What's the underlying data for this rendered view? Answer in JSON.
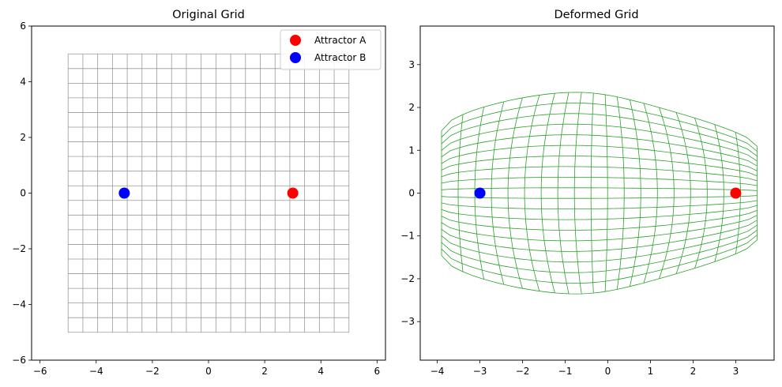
{
  "chart_data": [
    {
      "type": "line",
      "title": "Original Grid",
      "xlim": [
        -6.3,
        6.3
      ],
      "ylim": [
        -6,
        6
      ],
      "xticks": [
        -6,
        -4,
        -2,
        0,
        2,
        4,
        6
      ],
      "yticks": [
        -6,
        -4,
        -2,
        0,
        2,
        4,
        6
      ],
      "tick_labels_x": [
        "−6",
        "−4",
        "−2",
        "0",
        "2",
        "4",
        "6"
      ],
      "tick_labels_y": [
        "−6",
        "−4",
        "−2",
        "0",
        "2",
        "4",
        "6"
      ],
      "grid_x_range": [
        -5,
        5
      ],
      "grid_y_range": [
        -5,
        5
      ],
      "grid_lines": 20,
      "grid_color": "#999999",
      "legend_position": "upper right",
      "series": [
        {
          "name": "Attractor A",
          "x": [
            3
          ],
          "y": [
            0
          ],
          "color": "#ff0000"
        },
        {
          "name": "Attractor B",
          "x": [
            -3
          ],
          "y": [
            0
          ],
          "color": "#0000ff"
        }
      ]
    },
    {
      "type": "line",
      "title": "Deformed Grid",
      "xlim": [
        -4.4,
        3.9
      ],
      "ylim": [
        -3.9,
        3.9
      ],
      "xticks": [
        -4,
        -3,
        -2,
        -1,
        0,
        1,
        2,
        3
      ],
      "yticks": [
        -3,
        -2,
        -1,
        0,
        1,
        2,
        3
      ],
      "tick_labels_x": [
        "−4",
        "−3",
        "−2",
        "−1",
        "0",
        "1",
        "2",
        "3"
      ],
      "tick_labels_y": [
        "−3",
        "−2",
        "−1",
        "0",
        "1",
        "2",
        "3"
      ],
      "deformed_x_extent": [
        -3.9,
        3.5
      ],
      "deformed_y_extent": [
        -2.65,
        2.65
      ],
      "grid_color": "#2ca02c",
      "series": [
        {
          "name": "",
          "x": [
            3
          ],
          "y": [
            0
          ],
          "color": "#ff0000"
        },
        {
          "name": "",
          "x": [
            -3
          ],
          "y": [
            0
          ],
          "color": "#0000ff"
        }
      ]
    }
  ]
}
